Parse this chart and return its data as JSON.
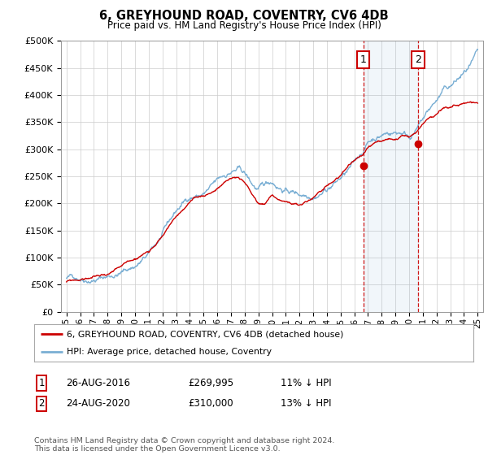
{
  "title": "6, GREYHOUND ROAD, COVENTRY, CV6 4DB",
  "subtitle": "Price paid vs. HM Land Registry's House Price Index (HPI)",
  "ylim": [
    0,
    500000
  ],
  "yticks": [
    0,
    50000,
    100000,
    150000,
    200000,
    250000,
    300000,
    350000,
    400000,
    450000,
    500000
  ],
  "hpi_color": "#7aafd4",
  "price_color": "#cc0000",
  "vline_color": "#cc0000",
  "transaction1_date": 2016.65,
  "transaction1_price": 269995,
  "transaction2_date": 2020.65,
  "transaction2_price": 310000,
  "legend_label_price": "6, GREYHOUND ROAD, COVENTRY, CV6 4DB (detached house)",
  "legend_label_hpi": "HPI: Average price, detached house, Coventry",
  "table_row1": [
    "1",
    "26-AUG-2016",
    "£269,995",
    "11% ↓ HPI"
  ],
  "table_row2": [
    "2",
    "24-AUG-2020",
    "£310,000",
    "13% ↓ HPI"
  ],
  "footnote": "Contains HM Land Registry data © Crown copyright and database right 2024.\nThis data is licensed under the Open Government Licence v3.0.",
  "background_color": "#ffffff",
  "grid_color": "#cccccc",
  "hpi_keypoints": [
    [
      1995.0,
      62000
    ],
    [
      1996.0,
      66000
    ],
    [
      1997.0,
      72000
    ],
    [
      1998.0,
      78000
    ],
    [
      1999.0,
      87000
    ],
    [
      2000.0,
      100000
    ],
    [
      2001.0,
      118000
    ],
    [
      2002.0,
      150000
    ],
    [
      2003.0,
      188000
    ],
    [
      2004.0,
      215000
    ],
    [
      2005.0,
      222000
    ],
    [
      2006.0,
      238000
    ],
    [
      2007.0,
      255000
    ],
    [
      2007.5,
      258000
    ],
    [
      2008.0,
      248000
    ],
    [
      2008.5,
      228000
    ],
    [
      2009.0,
      215000
    ],
    [
      2009.5,
      220000
    ],
    [
      2010.0,
      228000
    ],
    [
      2010.5,
      222000
    ],
    [
      2011.0,
      218000
    ],
    [
      2011.5,
      215000
    ],
    [
      2012.0,
      212000
    ],
    [
      2012.5,
      215000
    ],
    [
      2013.0,
      220000
    ],
    [
      2013.5,
      228000
    ],
    [
      2014.0,
      238000
    ],
    [
      2014.5,
      248000
    ],
    [
      2015.0,
      258000
    ],
    [
      2015.5,
      268000
    ],
    [
      2016.0,
      278000
    ],
    [
      2016.65,
      302000
    ],
    [
      2017.0,
      318000
    ],
    [
      2017.5,
      328000
    ],
    [
      2018.0,
      335000
    ],
    [
      2018.5,
      340000
    ],
    [
      2019.0,
      342000
    ],
    [
      2019.5,
      345000
    ],
    [
      2020.0,
      340000
    ],
    [
      2020.65,
      356000
    ],
    [
      2021.0,
      368000
    ],
    [
      2021.5,
      385000
    ],
    [
      2022.0,
      400000
    ],
    [
      2022.5,
      415000
    ],
    [
      2023.0,
      420000
    ],
    [
      2023.5,
      430000
    ],
    [
      2024.0,
      440000
    ],
    [
      2024.5,
      450000
    ],
    [
      2025.0,
      462000
    ]
  ],
  "price_keypoints": [
    [
      1995.0,
      55000
    ],
    [
      1996.0,
      58000
    ],
    [
      1997.0,
      63000
    ],
    [
      1998.0,
      68000
    ],
    [
      1999.0,
      76000
    ],
    [
      2000.0,
      88000
    ],
    [
      2001.0,
      105000
    ],
    [
      2002.0,
      138000
    ],
    [
      2003.0,
      172000
    ],
    [
      2004.0,
      198000
    ],
    [
      2005.0,
      205000
    ],
    [
      2006.0,
      220000
    ],
    [
      2007.0,
      237000
    ],
    [
      2007.5,
      240000
    ],
    [
      2008.0,
      228000
    ],
    [
      2008.5,
      208000
    ],
    [
      2009.0,
      188000
    ],
    [
      2009.5,
      190000
    ],
    [
      2010.0,
      205000
    ],
    [
      2010.5,
      198000
    ],
    [
      2011.0,
      192000
    ],
    [
      2011.5,
      188000
    ],
    [
      2012.0,
      182000
    ],
    [
      2012.5,
      188000
    ],
    [
      2013.0,
      196000
    ],
    [
      2013.5,
      206000
    ],
    [
      2014.0,
      218000
    ],
    [
      2014.5,
      228000
    ],
    [
      2015.0,
      240000
    ],
    [
      2015.5,
      250000
    ],
    [
      2016.0,
      260000
    ],
    [
      2016.65,
      269995
    ],
    [
      2017.0,
      280000
    ],
    [
      2017.5,
      288000
    ],
    [
      2018.0,
      294000
    ],
    [
      2018.5,
      298000
    ],
    [
      2019.0,
      300000
    ],
    [
      2019.5,
      302000
    ],
    [
      2020.0,
      298000
    ],
    [
      2020.65,
      310000
    ],
    [
      2021.0,
      318000
    ],
    [
      2021.5,
      328000
    ],
    [
      2022.0,
      335000
    ],
    [
      2022.5,
      345000
    ],
    [
      2023.0,
      348000
    ],
    [
      2023.5,
      352000
    ],
    [
      2024.0,
      355000
    ],
    [
      2024.5,
      358000
    ],
    [
      2025.0,
      362000
    ]
  ]
}
